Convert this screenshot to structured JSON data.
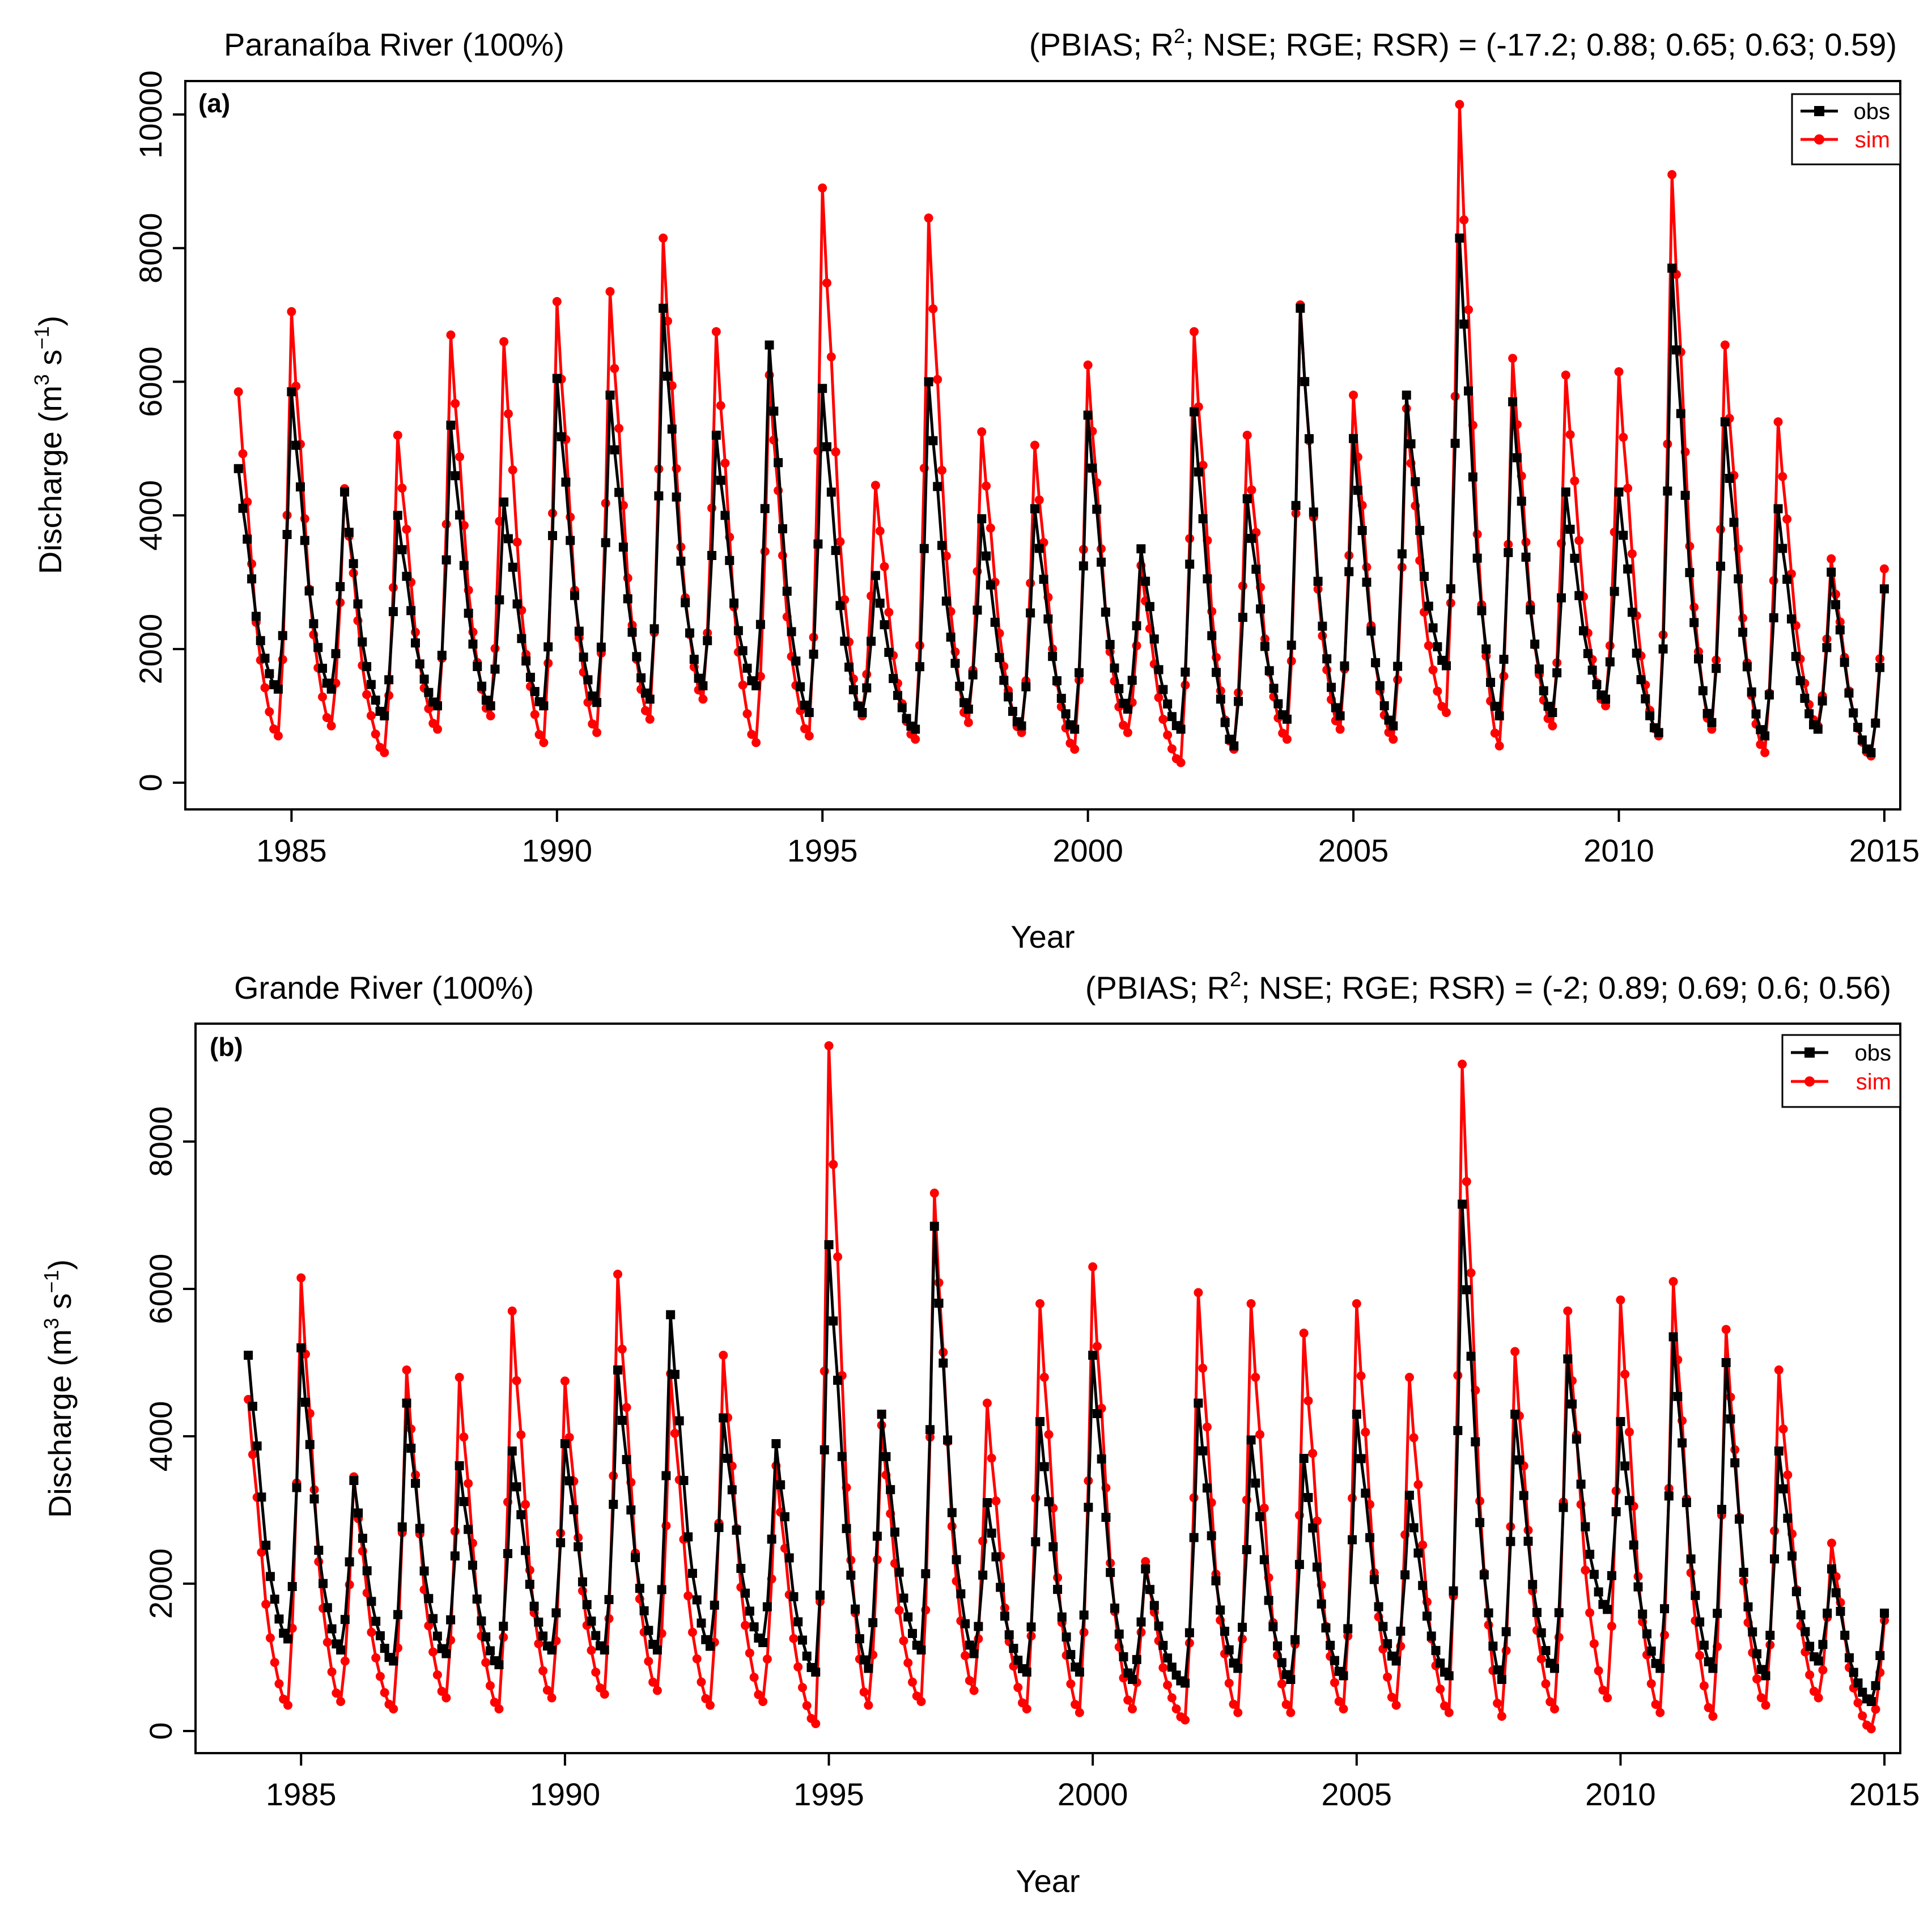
{
  "colors": {
    "obs": "#000000",
    "sim": "#ff0000",
    "axis": "#000000",
    "background": "#ffffff"
  },
  "chart_data": [
    {
      "type": "line",
      "panel_label": "(a)",
      "title": "Paranaíba River (100%)",
      "metrics_prefix": "(PBIAS; R",
      "metrics_sup": "2",
      "metrics_suffix": "; NSE; RGE; RSR) = (-17.2; 0.88; 0.65; 0.63; 0.59)",
      "xlabel": "Year",
      "ylabel_prefix": "Discharge (m",
      "ylabel_sup1": "3",
      "ylabel_mid": " s",
      "ylabel_sup2": "−1",
      "ylabel_suffix": ")",
      "xlim": [
        1983.0,
        2015.3
      ],
      "ylim": [
        -400,
        10500
      ],
      "xticks": [
        1985,
        1990,
        1995,
        2000,
        2005,
        2010,
        2015
      ],
      "xtick_labels": [
        "1985",
        "1990",
        "1995",
        "2000",
        "2005",
        "2010",
        "2015"
      ],
      "yticks": [
        0,
        2000,
        4000,
        6000,
        8000,
        10000
      ],
      "ytick_labels": [
        "0",
        "2000",
        "4000",
        "6000",
        "8000",
        "10000"
      ],
      "legend": {
        "placement": "top-right",
        "entries": [
          "obs",
          "sim"
        ]
      },
      "series": [
        {
          "name": "obs",
          "x_start": 1984.0,
          "x_step": 0.0833333,
          "peaks": [
            4700,
            5850,
            4350,
            4000,
            5350,
            4200,
            6050,
            5800,
            7100,
            5200,
            6550,
            5900,
            3100,
            6000,
            3950,
            4100,
            5500,
            3500,
            5550,
            4250,
            7100,
            5150,
            5800,
            8150,
            5700,
            4350,
            4350,
            7700,
            5400,
            4100,
            3150,
            2900
          ],
          "troughs": [
            1400,
            1400,
            1000,
            1150,
            1150,
            1150,
            1200,
            1250,
            1450,
            1450,
            1050,
            1050,
            800,
            1100,
            850,
            800,
            1100,
            800,
            550,
            950,
            1000,
            850,
            1750,
            1000,
            1050,
            1250,
            750,
            900,
            700,
            800,
            450
          ]
        },
        {
          "name": "sim",
          "x_start": 1984.0,
          "x_step": 0.0833333,
          "peaks": [
            5850,
            7050,
            4400,
            5200,
            6700,
            6600,
            7200,
            7350,
            8150,
            6750,
            6100,
            8900,
            4450,
            8450,
            5250,
            5050,
            6250,
            3250,
            6750,
            5200,
            7150,
            5800,
            5600,
            10150,
            6350,
            6100,
            6150,
            9100,
            6550,
            5400,
            3350,
            3200
          ],
          "troughs": [
            700,
            850,
            450,
            800,
            1000,
            600,
            750,
            950,
            1250,
            600,
            700,
            1000,
            650,
            900,
            750,
            500,
            750,
            300,
            500,
            650,
            800,
            650,
            1050,
            550,
            850,
            1150,
            700,
            800,
            450,
            850,
            400
          ]
        }
      ]
    },
    {
      "type": "line",
      "panel_label": "(b)",
      "title": "Grande River (100%)",
      "metrics_prefix": "(PBIAS; R",
      "metrics_sup": "2",
      "metrics_suffix": "; NSE; RGE; RSR) = (-2; 0.89; 0.69; 0.6; 0.56)",
      "xlabel": "Year",
      "ylabel_prefix": "Discharge (m",
      "ylabel_sup1": "3",
      "ylabel_mid": " s",
      "ylabel_sup2": "−1",
      "ylabel_suffix": ")",
      "xlim": [
        1983.0,
        2015.3
      ],
      "ylim": [
        -300,
        9600
      ],
      "xticks": [
        1985,
        1990,
        1995,
        2000,
        2005,
        2010,
        2015
      ],
      "xtick_labels": [
        "1985",
        "1990",
        "1995",
        "2000",
        "2005",
        "2010",
        "2015"
      ],
      "yticks": [
        0,
        2000,
        4000,
        6000,
        8000
      ],
      "ytick_labels": [
        "0",
        "2000",
        "4000",
        "6000",
        "8000"
      ],
      "legend": {
        "placement": "top-right",
        "entries": [
          "obs",
          "sim"
        ]
      },
      "series": [
        {
          "name": "obs",
          "x_start": 1984.0,
          "x_step": 0.0833333,
          "peaks": [
            5100,
            5200,
            3400,
            4450,
            3600,
            3800,
            3900,
            4900,
            5650,
            4250,
            3900,
            6600,
            4300,
            6850,
            3100,
            4200,
            5100,
            2200,
            4450,
            3950,
            3700,
            4300,
            3200,
            7150,
            4300,
            5050,
            4200,
            5350,
            5000,
            3800,
            2200,
            1600
          ],
          "troughs": [
            1250,
            1100,
            950,
            1050,
            900,
            1100,
            1100,
            1100,
            1150,
            1200,
            800,
            850,
            1100,
            1050,
            800,
            800,
            700,
            650,
            850,
            700,
            750,
            950,
            750,
            700,
            850,
            1650,
            850,
            850,
            750,
            950,
            400
          ]
        },
        {
          "name": "sim",
          "x_start": 1984.0,
          "x_step": 0.0833333,
          "peaks": [
            4500,
            6150,
            3450,
            4900,
            4800,
            5700,
            4750,
            6200,
            4850,
            5100,
            3600,
            9300,
            4150,
            7300,
            4450,
            5800,
            6300,
            2300,
            5950,
            5800,
            5400,
            5800,
            4800,
            9050,
            5150,
            5700,
            5850,
            6100,
            5450,
            4900,
            2550,
            1500
          ],
          "troughs": [
            350,
            400,
            300,
            450,
            300,
            450,
            500,
            550,
            350,
            400,
            100,
            350,
            400,
            550,
            300,
            250,
            300,
            150,
            250,
            250,
            300,
            350,
            250,
            200,
            300,
            450,
            250,
            200,
            350,
            450,
            30
          ]
        }
      ]
    }
  ]
}
